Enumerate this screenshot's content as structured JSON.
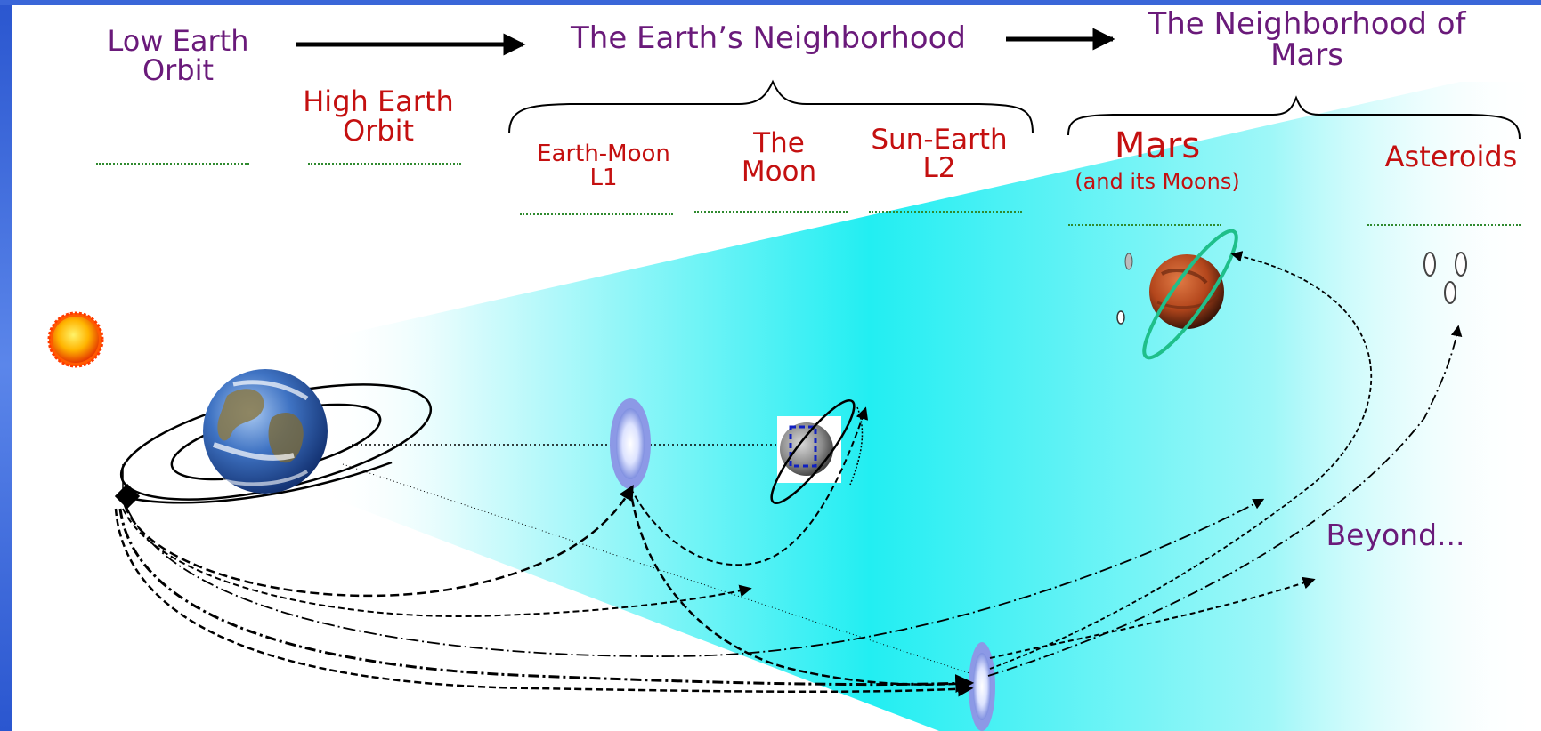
{
  "colors": {
    "purple_text": "#6a1a7a",
    "red_text": "#c41010",
    "cyan_beam": "#22eef2",
    "left_border": "#2f5fd8",
    "blank_line": "#2f8a2f",
    "mars_ring": "#1fbf8a"
  },
  "header": {
    "leo": "Low Earth\nOrbit",
    "earth_neighborhood": "The Earth’s Neighborhood",
    "mars_neighborhood": "The Neighborhood of\nMars"
  },
  "destinations": {
    "heo": "High Earth\nOrbit",
    "em_l1": "Earth-Moon\nL1",
    "moon": "The\nMoon",
    "se_l2": "Sun-Earth\nL2",
    "mars": "Mars",
    "mars_sub": "(and its Moons)",
    "asteroids": "Asteroids",
    "beyond": "Beyond..."
  },
  "icons": [
    "sun-icon",
    "earth-icon",
    "moon-icon",
    "mars-icon",
    "lagrange-point-icon",
    "spacecraft-icon",
    "asteroid-icon"
  ]
}
